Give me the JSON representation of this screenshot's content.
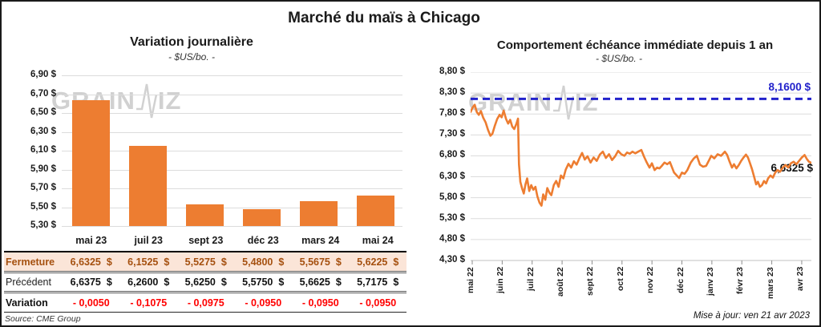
{
  "page": {
    "title": "Marché du maïs à Chicago",
    "source": "Source: CME Group",
    "updated": "Mise à jour: ven 21 avr 2023",
    "watermark_left": "GRAIN",
    "watermark_right": "IZ"
  },
  "colors": {
    "orange": "#ED7D31",
    "blue": "#2222CB",
    "red": "#FF0000",
    "fermeture_bg": "#FBE5D8",
    "fermeture_text": "#A5500F",
    "gridline": "#dcdcdc"
  },
  "chart_data": [
    {
      "type": "bar",
      "title": "Variation journalière",
      "subtitle": "- $US/bo. -",
      "categories": [
        "mai 23",
        "juil 23",
        "sept 23",
        "déc 23",
        "mars 24",
        "mai 24"
      ],
      "values": [
        6.6325,
        6.1525,
        5.5275,
        5.48,
        5.5675,
        5.6225
      ],
      "ylim": [
        5.3,
        6.9
      ],
      "ytick_step": 0.2,
      "ytick_labels": [
        "6,90 $",
        "6,70 $",
        "6,50 $",
        "6,30 $",
        "6,10 $",
        "5,90 $",
        "5,70 $",
        "5,50 $",
        "5,30 $"
      ],
      "bar_color": "#ED7D31",
      "grid": true
    },
    {
      "type": "line",
      "title": "Comportement échéance immédiate depuis 1 an",
      "subtitle": "- $US/bo. -",
      "x_labels": [
        "mai 22",
        "juin 22",
        "juil 22",
        "août 22",
        "sept 22",
        "oct 22",
        "nov 22",
        "déc 22",
        "janv 23",
        "févr 23",
        "mars 23",
        "avr 23"
      ],
      "ylim": [
        4.3,
        8.8
      ],
      "ytick_step": 0.5,
      "ytick_labels": [
        "8,80 $",
        "8,30 $",
        "7,80 $",
        "7,30 $",
        "6,80 $",
        "6,30 $",
        "5,80 $",
        "5,30 $",
        "4,80 $",
        "4,30 $"
      ],
      "reference_line": {
        "value": 8.16,
        "label": "8,1600 $",
        "color": "#2222CB",
        "style": "dashed"
      },
      "last_value_label": "6,6325 $",
      "grid": true,
      "series": [
        {
          "name": "échéance immédiate",
          "color": "#ED7D31",
          "points": [
            [
              0.0,
              7.85
            ],
            [
              0.006,
              7.96
            ],
            [
              0.012,
              8.02
            ],
            [
              0.018,
              7.85
            ],
            [
              0.024,
              7.78
            ],
            [
              0.03,
              7.87
            ],
            [
              0.037,
              7.71
            ],
            [
              0.044,
              7.6
            ],
            [
              0.051,
              7.42
            ],
            [
              0.058,
              7.28
            ],
            [
              0.064,
              7.33
            ],
            [
              0.071,
              7.52
            ],
            [
              0.078,
              7.68
            ],
            [
              0.085,
              7.78
            ],
            [
              0.091,
              7.72
            ],
            [
              0.097,
              7.88
            ],
            [
              0.104,
              7.68
            ],
            [
              0.11,
              7.57
            ],
            [
              0.116,
              7.66
            ],
            [
              0.122,
              7.5
            ],
            [
              0.128,
              7.44
            ],
            [
              0.134,
              7.56
            ],
            [
              0.139,
              7.69
            ],
            [
              0.142,
              6.6
            ],
            [
              0.146,
              6.18
            ],
            [
              0.151,
              6.02
            ],
            [
              0.156,
              5.9
            ],
            [
              0.161,
              6.12
            ],
            [
              0.166,
              6.26
            ],
            [
              0.172,
              5.96
            ],
            [
              0.178,
              6.1
            ],
            [
              0.184,
              5.99
            ],
            [
              0.19,
              6.06
            ],
            [
              0.196,
              5.83
            ],
            [
              0.202,
              5.68
            ],
            [
              0.208,
              5.61
            ],
            [
              0.213,
              5.88
            ],
            [
              0.219,
              5.75
            ],
            [
              0.225,
              6.03
            ],
            [
              0.231,
              5.92
            ],
            [
              0.237,
              5.86
            ],
            [
              0.244,
              6.1
            ],
            [
              0.251,
              6.2
            ],
            [
              0.258,
              6.06
            ],
            [
              0.265,
              6.33
            ],
            [
              0.272,
              6.26
            ],
            [
              0.279,
              6.47
            ],
            [
              0.287,
              6.61
            ],
            [
              0.295,
              6.52
            ],
            [
              0.303,
              6.67
            ],
            [
              0.311,
              6.59
            ],
            [
              0.319,
              6.74
            ],
            [
              0.327,
              6.87
            ],
            [
              0.335,
              6.71
            ],
            [
              0.343,
              6.79
            ],
            [
              0.352,
              6.64
            ],
            [
              0.361,
              6.76
            ],
            [
              0.37,
              6.68
            ],
            [
              0.379,
              6.83
            ],
            [
              0.388,
              6.9
            ],
            [
              0.397,
              6.75
            ],
            [
              0.406,
              6.84
            ],
            [
              0.415,
              6.7
            ],
            [
              0.424,
              6.79
            ],
            [
              0.433,
              6.92
            ],
            [
              0.442,
              6.84
            ],
            [
              0.451,
              6.8
            ],
            [
              0.459,
              6.88
            ],
            [
              0.467,
              6.85
            ],
            [
              0.475,
              6.9
            ],
            [
              0.483,
              6.86
            ],
            [
              0.492,
              6.9
            ],
            [
              0.501,
              6.94
            ],
            [
              0.509,
              6.78
            ],
            [
              0.517,
              6.64
            ],
            [
              0.525,
              6.52
            ],
            [
              0.532,
              6.62
            ],
            [
              0.54,
              6.46
            ],
            [
              0.547,
              6.52
            ],
            [
              0.554,
              6.5
            ],
            [
              0.561,
              6.56
            ],
            [
              0.569,
              6.64
            ],
            [
              0.577,
              6.6
            ],
            [
              0.585,
              6.65
            ],
            [
              0.597,
              6.4
            ],
            [
              0.605,
              6.33
            ],
            [
              0.612,
              6.27
            ],
            [
              0.62,
              6.4
            ],
            [
              0.628,
              6.37
            ],
            [
              0.636,
              6.46
            ],
            [
              0.646,
              6.64
            ],
            [
              0.655,
              6.74
            ],
            [
              0.664,
              6.8
            ],
            [
              0.673,
              6.59
            ],
            [
              0.682,
              6.54
            ],
            [
              0.691,
              6.56
            ],
            [
              0.7,
              6.7
            ],
            [
              0.706,
              6.8
            ],
            [
              0.715,
              6.74
            ],
            [
              0.725,
              6.84
            ],
            [
              0.735,
              6.8
            ],
            [
              0.746,
              6.9
            ],
            [
              0.753,
              6.82
            ],
            [
              0.76,
              6.66
            ],
            [
              0.767,
              6.52
            ],
            [
              0.773,
              6.6
            ],
            [
              0.78,
              6.5
            ],
            [
              0.787,
              6.58
            ],
            [
              0.794,
              6.68
            ],
            [
              0.801,
              6.76
            ],
            [
              0.808,
              6.83
            ],
            [
              0.814,
              6.76
            ],
            [
              0.82,
              6.62
            ],
            [
              0.826,
              6.48
            ],
            [
              0.832,
              6.3
            ],
            [
              0.838,
              6.12
            ],
            [
              0.843,
              6.18
            ],
            [
              0.849,
              6.06
            ],
            [
              0.855,
              6.1
            ],
            [
              0.861,
              6.2
            ],
            [
              0.867,
              6.14
            ],
            [
              0.873,
              6.26
            ],
            [
              0.88,
              6.33
            ],
            [
              0.887,
              6.28
            ],
            [
              0.894,
              6.4
            ],
            [
              0.901,
              6.46
            ],
            [
              0.908,
              6.42
            ],
            [
              0.916,
              6.52
            ],
            [
              0.924,
              6.58
            ],
            [
              0.932,
              6.52
            ],
            [
              0.94,
              6.62
            ],
            [
              0.948,
              6.66
            ],
            [
              0.956,
              6.6
            ],
            [
              0.964,
              6.68
            ],
            [
              0.972,
              6.76
            ],
            [
              0.98,
              6.82
            ],
            [
              0.987,
              6.72
            ],
            [
              0.993,
              6.66
            ],
            [
              1.0,
              6.6325
            ]
          ]
        }
      ]
    }
  ],
  "table": {
    "columns": [
      "mai 23",
      "juil 23",
      "sept 23",
      "déc 23",
      "mars 24",
      "mai 24"
    ],
    "rows": [
      {
        "label": "Fermeture",
        "values": [
          "6,6325",
          "6,1525",
          "5,5275",
          "5,4800",
          "5,5675",
          "5,6225"
        ],
        "unit": "$"
      },
      {
        "label": "Précédent",
        "values": [
          "6,6375",
          "6,2600",
          "5,6250",
          "5,5750",
          "5,6625",
          "5,7175"
        ],
        "unit": "$"
      },
      {
        "label": "Variation",
        "values": [
          "- 0,0050",
          "- 0,1075",
          "- 0,0975",
          "- 0,0950",
          "- 0,0950",
          "- 0,0950"
        ],
        "unit": ""
      }
    ]
  }
}
